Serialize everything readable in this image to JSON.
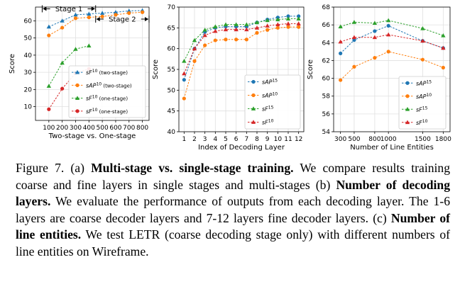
{
  "chart_data": [
    {
      "type": "line",
      "xlabel": "Two-stage vs. One-stage",
      "ylabel": "Score",
      "x": [
        100,
        200,
        300,
        400,
        500,
        600,
        700,
        800
      ],
      "xticks": [
        "100",
        "200",
        "300",
        "400",
        "500",
        "600",
        "700",
        "800"
      ],
      "xlim": [
        0,
        850
      ],
      "ylim": [
        2,
        68
      ],
      "yticks": [
        10,
        20,
        30,
        40,
        50,
        60
      ],
      "grid": true,
      "legend_position": "lower-right",
      "series": [
        {
          "name": "sF10 (two-stage)",
          "legend_base": "sF",
          "legend_sup": "10",
          "legend_suffix": " (two-stage)",
          "color": "#1f77b4",
          "marker": "triangle",
          "x": [
            100,
            200,
            300,
            400,
            500,
            600,
            700,
            800
          ],
          "values": [
            56.5,
            60,
            63.5,
            64,
            64.5,
            65,
            65.8,
            66
          ]
        },
        {
          "name": "sAP10 (two-stage)",
          "legend_base": "sAP",
          "legend_sup": "10",
          "legend_suffix": " (two-stage)",
          "color": "#ff7f0e",
          "marker": "circle",
          "x": [
            100,
            200,
            300,
            400,
            500,
            600,
            700,
            800
          ],
          "values": [
            51.5,
            56,
            61.5,
            62,
            62.5,
            63.5,
            64.5,
            65
          ]
        },
        {
          "name": "sF10 (one-stage)",
          "legend_base": "sF",
          "legend_sup": "10",
          "legend_suffix": " (one-stage)",
          "color": "#2ca02c",
          "marker": "triangle",
          "x": [
            100,
            200,
            300,
            400
          ],
          "values": [
            22,
            35.5,
            43.5,
            45.5
          ]
        },
        {
          "name": "sF10 (one-stage)",
          "legend_base": "sF",
          "legend_sup": "10",
          "legend_suffix": " (one-stage)",
          "color": "#d62728",
          "marker": "circle",
          "x": [
            100,
            200,
            300,
            400
          ],
          "values": [
            8.5,
            20.5,
            29.5,
            32
          ]
        }
      ],
      "annotations": [
        {
          "label": "Stage 1",
          "x_from": 50,
          "x_to": 450,
          "y": 67
        },
        {
          "label": "Stage 2",
          "x_from": 450,
          "x_to": 850,
          "y": 61
        }
      ]
    },
    {
      "type": "line",
      "xlabel": "Index of Decoding Layer",
      "ylabel": "Score",
      "x": [
        1,
        2,
        3,
        4,
        5,
        6,
        7,
        8,
        9,
        10,
        11,
        12
      ],
      "xticks": [
        "1",
        "2",
        "3",
        "4",
        "5",
        "6",
        "7",
        "8",
        "9",
        "10",
        "11",
        "12"
      ],
      "xlim": [
        0.5,
        12.5
      ],
      "ylim": [
        40,
        70
      ],
      "yticks": [
        40,
        45,
        50,
        55,
        60,
        65,
        70
      ],
      "grid": true,
      "legend_position": "lower-right",
      "series": [
        {
          "name": "sAP15",
          "legend_base": "sAP",
          "legend_sup": "15",
          "legend_suffix": "",
          "color": "#1f77b4",
          "marker": "circle",
          "x": [
            1,
            2,
            3,
            4,
            5,
            6,
            7,
            8,
            9,
            10,
            11,
            12
          ],
          "values": [
            52.5,
            60,
            64,
            65,
            65.3,
            65.3,
            65.3,
            66.3,
            67,
            67.5,
            67.8,
            67.8
          ]
        },
        {
          "name": "sAP10",
          "legend_base": "sAP",
          "legend_sup": "10",
          "legend_suffix": "",
          "color": "#ff7f0e",
          "marker": "circle",
          "x": [
            1,
            2,
            3,
            4,
            5,
            6,
            7,
            8,
            9,
            10,
            11,
            12
          ],
          "values": [
            48,
            57,
            60.8,
            62,
            62.2,
            62.2,
            62.2,
            63.8,
            64.5,
            65,
            65.2,
            65.2
          ]
        },
        {
          "name": "sF15",
          "legend_base": "sF",
          "legend_sup": "15",
          "legend_suffix": "",
          "color": "#2ca02c",
          "marker": "triangle",
          "x": [
            1,
            2,
            3,
            4,
            5,
            6,
            7,
            8,
            9,
            10,
            11,
            12
          ],
          "values": [
            57,
            62,
            64.5,
            65.3,
            65.8,
            65.8,
            65.8,
            66.3,
            66.8,
            67,
            67.2,
            67.2
          ]
        },
        {
          "name": "sF10",
          "legend_base": "sF",
          "legend_sup": "10",
          "legend_suffix": "",
          "color": "#d62728",
          "marker": "triangle",
          "x": [
            1,
            2,
            3,
            4,
            5,
            6,
            7,
            8,
            9,
            10,
            11,
            12
          ],
          "values": [
            54,
            60,
            63.2,
            64.2,
            64.6,
            64.6,
            64.6,
            65,
            65.5,
            65.8,
            66,
            66
          ]
        }
      ]
    },
    {
      "type": "line",
      "xlabel": "Number of Line Entities",
      "ylabel": "Score",
      "x": [
        300,
        500,
        800,
        1000,
        1500,
        1800
      ],
      "xticks": [
        "300",
        "500",
        "800",
        "1000",
        "1500",
        "1800"
      ],
      "xlim": [
        200,
        1900
      ],
      "ylim": [
        54,
        68
      ],
      "yticks": [
        54,
        56,
        58,
        60,
        62,
        64,
        66,
        68
      ],
      "grid": true,
      "legend_position": "lower-right",
      "series": [
        {
          "name": "sAP15",
          "legend_base": "sAP",
          "legend_sup": "15",
          "legend_suffix": "",
          "color": "#1f77b4",
          "marker": "circle",
          "x": [
            300,
            500,
            800,
            1000,
            1500,
            1800
          ],
          "values": [
            62.8,
            64.3,
            65.3,
            65.9,
            64.2,
            63.4
          ]
        },
        {
          "name": "sAP10",
          "legend_base": "sAP",
          "legend_sup": "10",
          "legend_suffix": "",
          "color": "#ff7f0e",
          "marker": "circle",
          "x": [
            300,
            500,
            800,
            1000,
            1500,
            1800
          ],
          "values": [
            59.8,
            61.3,
            62.3,
            63,
            62.1,
            61.2
          ]
        },
        {
          "name": "sF15",
          "legend_base": "sF",
          "legend_sup": "15",
          "legend_suffix": "",
          "color": "#2ca02c",
          "marker": "triangle",
          "x": [
            300,
            500,
            800,
            1000,
            1500,
            1800
          ],
          "values": [
            65.8,
            66.3,
            66.2,
            66.5,
            65.6,
            64.8
          ]
        },
        {
          "name": "sF10",
          "legend_base": "sF",
          "legend_sup": "10",
          "legend_suffix": "",
          "color": "#d62728",
          "marker": "triangle",
          "x": [
            300,
            500,
            800,
            1000,
            1500,
            1800
          ],
          "values": [
            64.1,
            64.6,
            64.6,
            64.9,
            64.2,
            63.4
          ]
        }
      ]
    }
  ],
  "caption": {
    "p1": "Figure 7. (a) ",
    "b1": "Multi-stage vs.  single-stage training.",
    "p2": " We compare results training coarse and fine layers in single stages and multi-stages (b) ",
    "b2": "Number of decoding layers.",
    "p3": " We evaluate the performance of outputs from each decoding layer. The 1-6 layers are coarse decoder layers and 7-12 layers fine decoder layers. (c) ",
    "b3": "Number of line entities.",
    "p4": " We test LETR (coarse decoding stage only) with different numbers of line entities on Wireframe."
  }
}
